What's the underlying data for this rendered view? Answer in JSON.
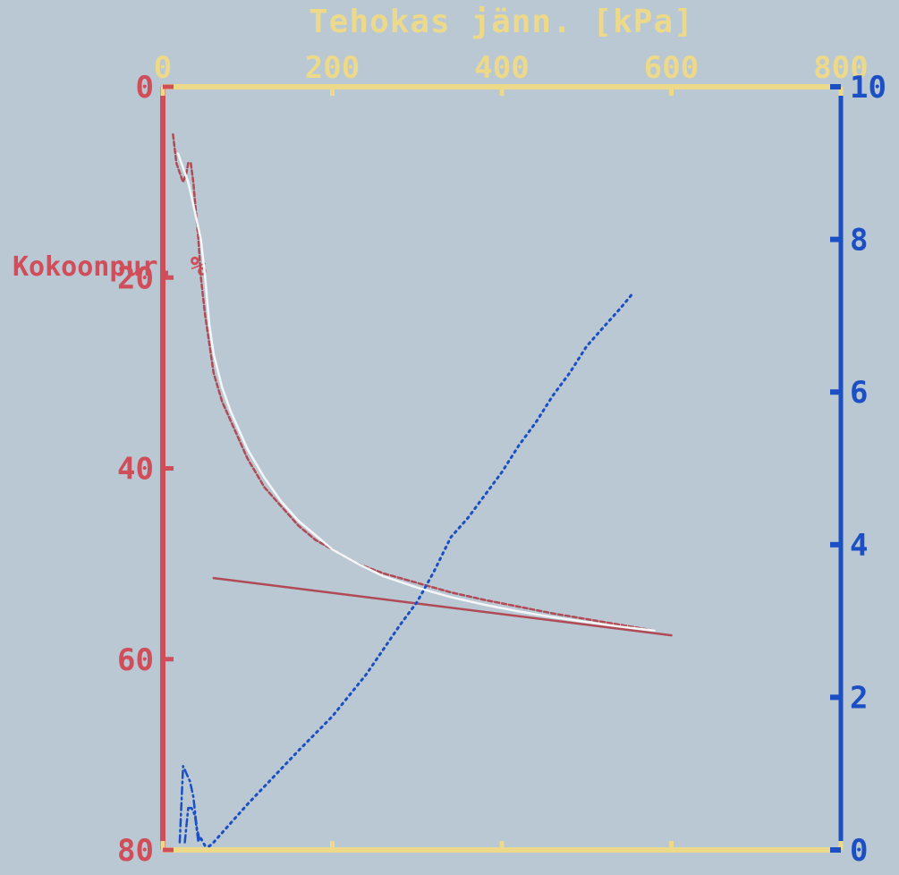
{
  "chart_data": {
    "type": "line",
    "title": "Tehokas jänn. [kPa]",
    "xlabel": "Tehokas jänn. [kPa]",
    "ylabel": "Kokoonpur. %",
    "y2label": "",
    "xlim": [
      0,
      800
    ],
    "ylim": [
      0,
      80
    ],
    "y_inverted": true,
    "y2lim": [
      0,
      10
    ],
    "x_ticks": [
      "0",
      "200",
      "400",
      "600",
      "800"
    ],
    "y_ticks": [
      "0",
      "20",
      "40",
      "60",
      "80"
    ],
    "y2_ticks": [
      "0",
      "2",
      "4",
      "6",
      "8",
      "10"
    ],
    "grid": false,
    "colors": {
      "background": "#b9c8d2",
      "top_axis": "#ecd98a",
      "left_axis": "#d04d5a",
      "right_axis": "#1c4fc4",
      "strain_curve": "#b04a55",
      "strain_fit": "#f4f6f8",
      "secondary": "#1c4fc4"
    },
    "series": [
      {
        "axis": "left",
        "style": "dashed",
        "color": "#b04a55",
        "x": [
          12,
          16,
          20,
          24,
          28,
          30,
          33,
          36,
          38,
          40,
          42,
          45,
          50,
          55,
          60,
          70,
          80,
          90,
          100,
          120,
          140,
          160,
          180,
          200,
          230,
          260,
          300,
          340,
          380,
          420,
          460,
          500,
          540,
          580
        ],
        "y": [
          5,
          8,
          9,
          10,
          9,
          8,
          8,
          10,
          12,
          14,
          16,
          20,
          24,
          27,
          30,
          33,
          35,
          37,
          39,
          42,
          44,
          46,
          47.5,
          48.5,
          50,
          51,
          52,
          53,
          53.8,
          54.5,
          55.2,
          55.8,
          56.4,
          57
        ]
      },
      {
        "axis": "left",
        "style": "solid",
        "color": "#f4f6f8",
        "x": [
          18,
          22,
          26,
          30,
          35,
          40,
          45,
          50,
          55,
          60,
          70,
          80,
          90,
          100,
          120,
          140,
          160,
          180,
          200,
          230,
          260,
          300,
          340,
          380,
          420,
          460,
          500,
          540,
          580
        ],
        "y": [
          7,
          8,
          9,
          10,
          12,
          14,
          16,
          20,
          25,
          28,
          31.5,
          34,
          36,
          38,
          41,
          43.5,
          45.5,
          47,
          48.5,
          50,
          51.3,
          52.5,
          53.5,
          54.3,
          55,
          55.6,
          56.1,
          56.6,
          57
        ]
      },
      {
        "axis": "left",
        "style": "solid",
        "color": "#b04a55",
        "x": [
          60,
          600
        ],
        "y": [
          51.5,
          57.5
        ]
      },
      {
        "axis": "right",
        "style": "dotted",
        "color": "#1c4fc4",
        "x": [
          45,
          50,
          55,
          60,
          80,
          100,
          130,
          160,
          200,
          240,
          280,
          300,
          320,
          340,
          360,
          380,
          400,
          420,
          440,
          460,
          480,
          500,
          520,
          540,
          555
        ],
        "y": [
          0.15,
          0.05,
          0.05,
          0.1,
          0.35,
          0.6,
          0.95,
          1.3,
          1.75,
          2.3,
          2.95,
          3.25,
          3.65,
          4.1,
          4.35,
          4.65,
          4.95,
          5.3,
          5.6,
          5.95,
          6.25,
          6.6,
          6.85,
          7.1,
          7.3
        ]
      },
      {
        "axis": "right",
        "style": "dashdot",
        "color": "#1c4fc4",
        "x": [
          20,
          24,
          28,
          32,
          36,
          40,
          44
        ],
        "y": [
          0.1,
          1.1,
          1.0,
          0.9,
          0.7,
          0.3,
          0.1
        ]
      },
      {
        "axis": "right",
        "style": "dashdot",
        "color": "#1c4fc4",
        "x": [
          26,
          30,
          34,
          38,
          42
        ],
        "y": [
          0.1,
          0.55,
          0.55,
          0.45,
          0.1
        ]
      }
    ]
  }
}
